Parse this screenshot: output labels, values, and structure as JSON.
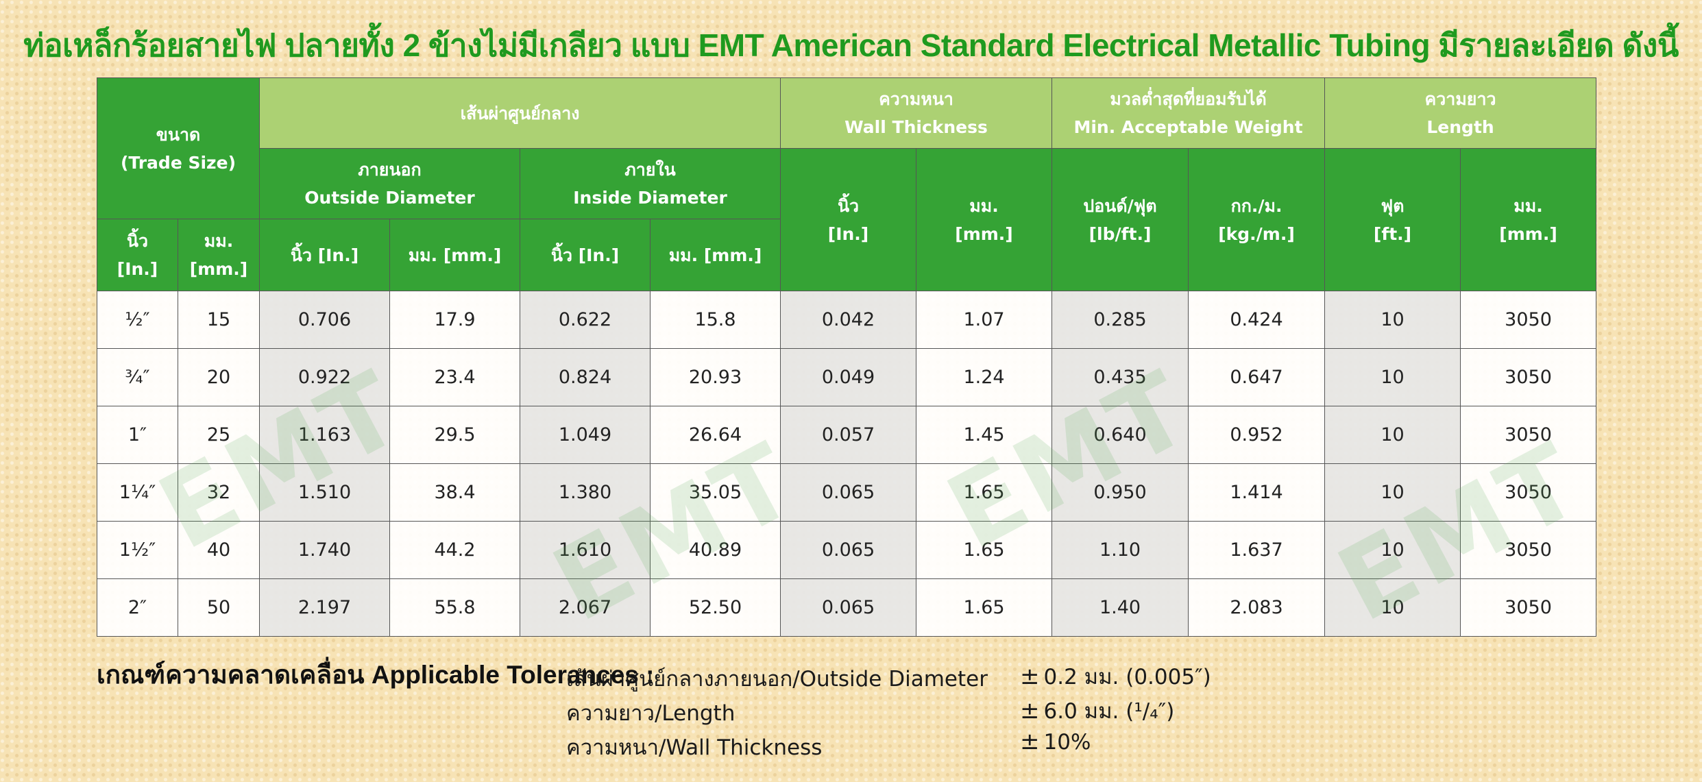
{
  "title": "ท่อเหล็กร้อยสายไฟ ปลายทั้ง 2 ข้างไม่มีเกลียว แบบ EMT American Standard Electrical Metallic Tubing มีรายละเอียด ดังนี้",
  "watermark": "EMT",
  "headers": {
    "size": {
      "th": "ขนาด",
      "en": "(Trade Size)"
    },
    "size_in": {
      "th": "นิ้ว",
      "en": "[In.]"
    },
    "size_mm": {
      "th": "มม.",
      "en": "[mm.]"
    },
    "diameter": "เส้นผ่าศูนย์กลาง",
    "outside": {
      "th": "ภายนอก",
      "en": "Outside Diameter"
    },
    "inside": {
      "th": "ภายใน",
      "en": "Inside Diameter"
    },
    "od_in": "นิ้ว [In.]",
    "od_mm": "มม. [mm.]",
    "id_in": "นิ้ว [In.]",
    "id_mm": "มม. [mm.]",
    "wall": {
      "th": "ความหนา",
      "en": "Wall Thickness"
    },
    "wall_in": {
      "th": "นิ้ว",
      "en": "[In.]"
    },
    "wall_mm": {
      "th": "มม.",
      "en": "[mm.]"
    },
    "weight": {
      "th": "มวลต่ำสุดที่ยอมรับได้",
      "en": "Min. Acceptable Weight"
    },
    "weight_lb": {
      "th": "ปอนด์/ฟุต",
      "en": "[lb/ft.]"
    },
    "weight_kg": {
      "th": "กก./ม.",
      "en": "[kg./m.]"
    },
    "length": {
      "th": "ความยาว",
      "en": "Length"
    },
    "length_ft": {
      "th": "ฟุต",
      "en": "[ft.]"
    },
    "length_mm": {
      "th": "มม.",
      "en": "[mm.]"
    }
  },
  "rows": [
    {
      "size_in": "½″",
      "size_mm": "15",
      "od_in": "0.706",
      "od_mm": "17.9",
      "id_in": "0.622",
      "id_mm": "15.8",
      "wall_in": "0.042",
      "wall_mm": "1.07",
      "weight_lb": "0.285",
      "weight_kg": "0.424",
      "length_ft": "10",
      "length_mm": "3050"
    },
    {
      "size_in": "¾″",
      "size_mm": "20",
      "od_in": "0.922",
      "od_mm": "23.4",
      "id_in": "0.824",
      "id_mm": "20.93",
      "wall_in": "0.049",
      "wall_mm": "1.24",
      "weight_lb": "0.435",
      "weight_kg": "0.647",
      "length_ft": "10",
      "length_mm": "3050"
    },
    {
      "size_in": "1″",
      "size_mm": "25",
      "od_in": "1.163",
      "od_mm": "29.5",
      "id_in": "1.049",
      "id_mm": "26.64",
      "wall_in": "0.057",
      "wall_mm": "1.45",
      "weight_lb": "0.640",
      "weight_kg": "0.952",
      "length_ft": "10",
      "length_mm": "3050"
    },
    {
      "size_in": "1¼″",
      "size_mm": "32",
      "od_in": "1.510",
      "od_mm": "38.4",
      "id_in": "1.380",
      "id_mm": "35.05",
      "wall_in": "0.065",
      "wall_mm": "1.65",
      "weight_lb": "0.950",
      "weight_kg": "1.414",
      "length_ft": "10",
      "length_mm": "3050"
    },
    {
      "size_in": "1½″",
      "size_mm": "40",
      "od_in": "1.740",
      "od_mm": "44.2",
      "id_in": "1.610",
      "id_mm": "40.89",
      "wall_in": "0.065",
      "wall_mm": "1.65",
      "weight_lb": "1.10",
      "weight_kg": "1.637",
      "length_ft": "10",
      "length_mm": "3050"
    },
    {
      "size_in": "2″",
      "size_mm": "50",
      "od_in": "2.197",
      "od_mm": "55.8",
      "id_in": "2.067",
      "id_mm": "52.50",
      "wall_in": "0.065",
      "wall_mm": "1.65",
      "weight_lb": "1.40",
      "weight_kg": "2.083",
      "length_ft": "10",
      "length_mm": "3050"
    }
  ],
  "tolerances": {
    "label": "เกณฑ์ความคลาดเคลื่อน Applicable Tolerances :",
    "items": [
      {
        "name": "เส้นผ่าศูนย์กลางภายนอก/Outside Diameter",
        "pm": "±",
        "value": "0.2 มม. (0.005″)"
      },
      {
        "name": "ความยาว/Length",
        "pm": "±",
        "value": "6.0 มม. (¹/₄″)"
      },
      {
        "name": "ความหนา/Wall Thickness",
        "pm": "±",
        "value": "10%"
      }
    ]
  },
  "colors": {
    "title": "#1f9a1f",
    "header_dark_green": "#35a335",
    "header_light_green": "#acd173",
    "background": "#f7e3b5",
    "shaded_cell": "#e7e7e7"
  }
}
